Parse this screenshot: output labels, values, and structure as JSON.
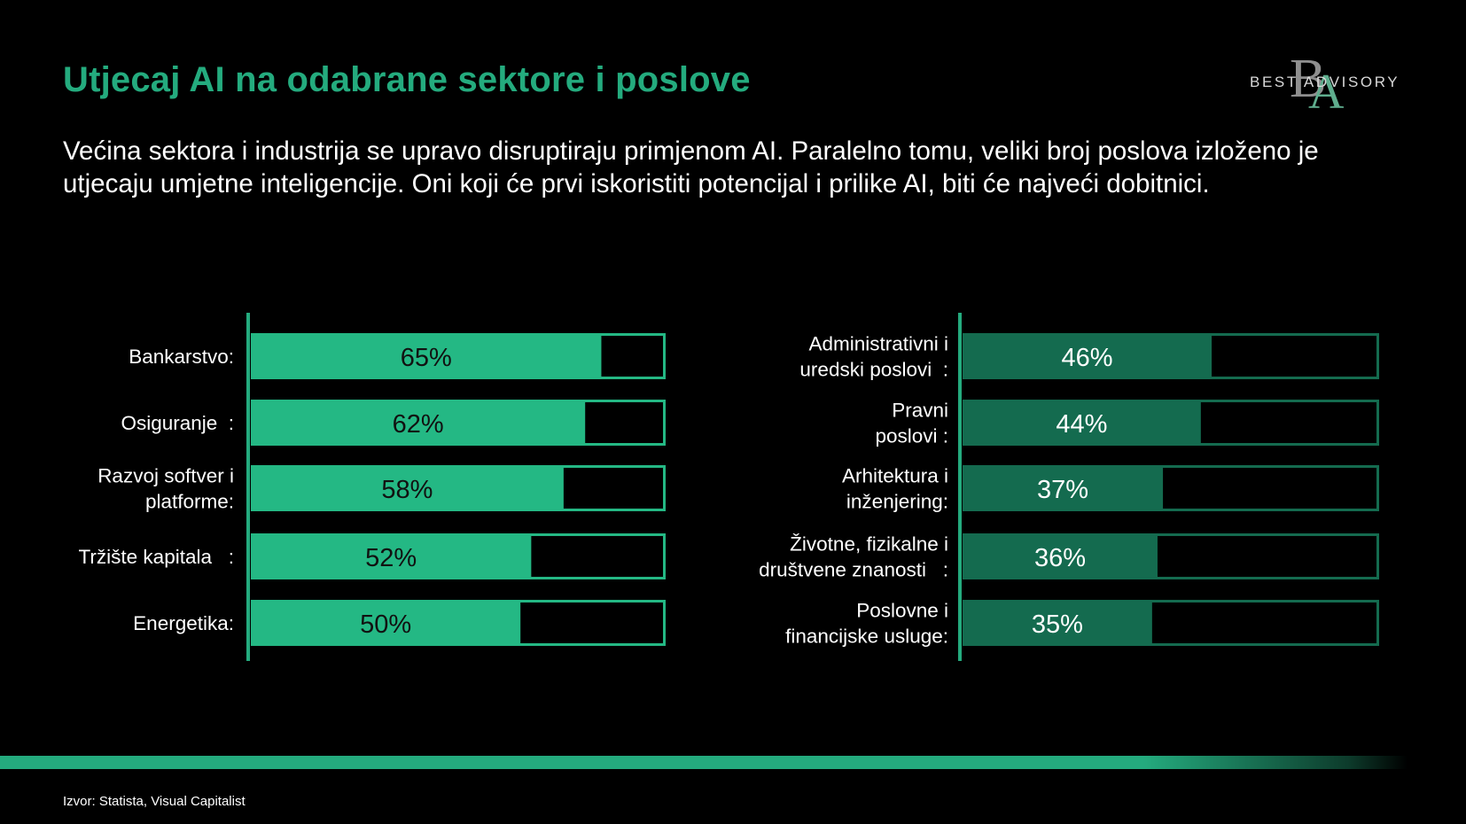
{
  "title": "Utjecaj AI na odabrane sektore  i poslove",
  "subtitle": "Većina sektora i industrija se upravo disruptiraju primjenom AI. Paralelno tomu, veliki broj poslova izloženo je utjecaju umjetne inteligencije. Oni koji će prvi iskoristiti potencijal i prilike AI, biti će najveći dobitnici.",
  "logo": {
    "monogram_b": "B",
    "monogram_a": "A",
    "text": "BEST ADVISORY"
  },
  "source": "Izvor:  Statista, Visual Capitalist",
  "colors": {
    "background": "#000000",
    "accent": "#24ab7e",
    "left_bar": "#24b884",
    "right_bar": "#146b4f",
    "title": "#24ab7e"
  },
  "chart_data": [
    {
      "type": "bar",
      "orientation": "horizontal",
      "categories": [
        [
          "Bankarstvo:"
        ],
        [
          "Osiguranje  :"
        ],
        [
          "Razvoj softver i",
          "platforme:"
        ],
        [
          "Tržište kapitala   :"
        ],
        [
          "Energetika:"
        ]
      ],
      "values": [
        65,
        62,
        58,
        52,
        50
      ],
      "labels": [
        "65%",
        "62%",
        "58%",
        "52%",
        "50%"
      ],
      "xlim": [
        0,
        100
      ],
      "bar_color": "#24b884",
      "label_color": "#111111"
    },
    {
      "type": "bar",
      "orientation": "horizontal",
      "categories": [
        [
          "Administrativni i",
          "uredski poslovi  :"
        ],
        [
          "Pravni",
          "poslovi :"
        ],
        [
          "Arhitektura i",
          "inženjering:"
        ],
        [
          "Životne, fizikalne i",
          "društvene znanosti   :"
        ],
        [
          "Poslovne i",
          "financijske usluge:"
        ]
      ],
      "values": [
        46,
        44,
        37,
        36,
        35
      ],
      "labels": [
        "46%",
        "44%",
        "37%",
        "36%",
        "35%"
      ],
      "xlim": [
        0,
        100
      ],
      "bar_color": "#146b4f",
      "label_color": "#ffffff"
    }
  ]
}
